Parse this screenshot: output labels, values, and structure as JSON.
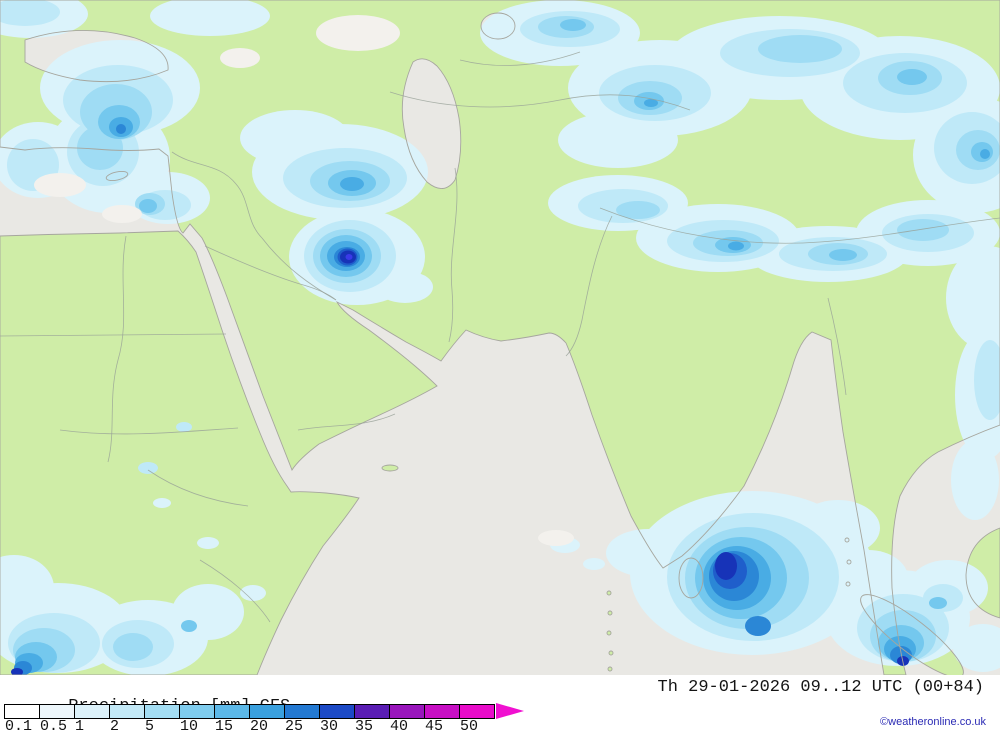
{
  "footer": {
    "title": "Precipitation",
    "units": "[mm]",
    "model": "CFS",
    "datetime": "Th 29-01-2026 09..12 UTC (00+84)",
    "copyright": "©weatheronline.co.uk"
  },
  "legend": {
    "unit": "mm",
    "labels": [
      "0.1",
      "0.5",
      "1",
      "2",
      "5",
      "10",
      "15",
      "20",
      "25",
      "30",
      "35",
      "40",
      "45",
      "50"
    ],
    "colors": [
      "#ffffff",
      "#edf6fb",
      "#dcf1fa",
      "#c3e9f7",
      "#a3ddf3",
      "#7fccee",
      "#5cb8e8",
      "#3aa0de",
      "#2379d2",
      "#1c4ac6",
      "#5a1db4",
      "#9916bc",
      "#c70fc4",
      "#e90cca"
    ],
    "arrow_color": "#f010d0"
  },
  "map": {
    "region": "Middle East / South Asia",
    "colors": {
      "land": "#cfeda7",
      "sea": "#e9e8e4",
      "coast": "#a6a69e",
      "border": "#97a097",
      "precip_levels": [
        "#dbf3fb",
        "#bfe9f8",
        "#9fdcf4",
        "#74c8ee",
        "#49ace4",
        "#2b87d6",
        "#1f5ecb",
        "#1733b8",
        "#3a3ae8"
      ]
    }
  }
}
